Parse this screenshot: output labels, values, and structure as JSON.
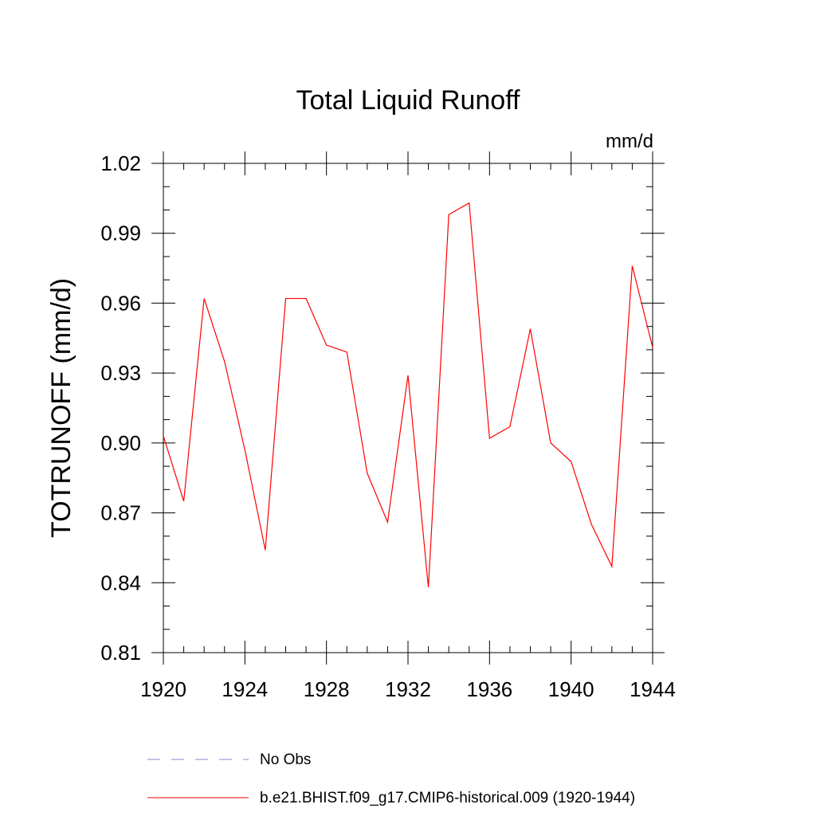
{
  "chart_data": {
    "type": "line",
    "title": "Total Liquid Runoff",
    "units_label": "mm/d",
    "ylabel": "TOTRUNOFF  (mm/d)",
    "xlabel": "",
    "xlim": [
      1920,
      1944
    ],
    "ylim": [
      0.81,
      1.02
    ],
    "xticks": [
      1920,
      1924,
      1928,
      1932,
      1936,
      1940,
      1944
    ],
    "xtick_labels": [
      "1920",
      "1924",
      "1928",
      "1932",
      "1936",
      "1940",
      "1944"
    ],
    "yticks": [
      0.81,
      0.84,
      0.87,
      0.9,
      0.93,
      0.96,
      0.99,
      1.02
    ],
    "ytick_labels": [
      "0.81",
      "0.84",
      "0.87",
      "0.90",
      "0.93",
      "0.96",
      "0.99",
      "1.02"
    ],
    "x_minor_step": 1,
    "y_minor_step": 0.01,
    "grid": false,
    "legend_position": "bottom",
    "series": [
      {
        "name": "b.e21.BHIST.f09_g17.CMIP6-historical.009 (1920-1944)",
        "color": "#ff0000",
        "style": "solid",
        "x": [
          1920,
          1921,
          1922,
          1923,
          1924,
          1925,
          1926,
          1927,
          1928,
          1929,
          1930,
          1931,
          1932,
          1933,
          1934,
          1935,
          1936,
          1937,
          1938,
          1939,
          1940,
          1941,
          1942,
          1943,
          1944
        ],
        "y": [
          0.903,
          0.875,
          0.962,
          0.935,
          0.897,
          0.854,
          0.962,
          0.962,
          0.942,
          0.939,
          0.887,
          0.866,
          0.929,
          0.838,
          0.998,
          1.003,
          0.902,
          0.907,
          0.949,
          0.9,
          0.892,
          0.865,
          0.847,
          0.976,
          0.941
        ]
      }
    ],
    "legend": [
      {
        "label": "No Obs",
        "color": "#8888cc",
        "style": "dashed"
      },
      {
        "label": "b.e21.BHIST.f09_g17.CMIP6-historical.009 (1920-1944)",
        "color": "#ff0000",
        "style": "solid"
      }
    ]
  }
}
